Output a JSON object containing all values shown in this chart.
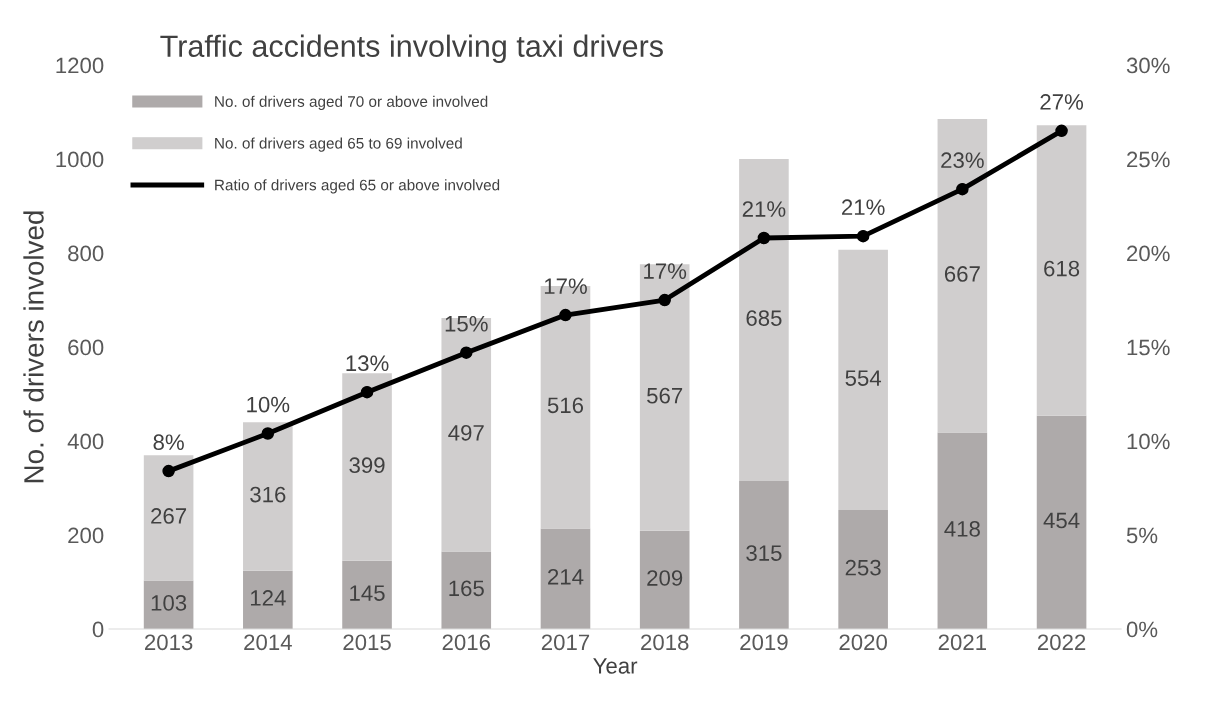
{
  "chart_data": {
    "type": "bar",
    "title": "Traffic accidents involving taxi drivers",
    "xlabel": "Year",
    "ylabel": "No. of drivers involved",
    "categories": [
      "2013",
      "2014",
      "2015",
      "2016",
      "2017",
      "2018",
      "2019",
      "2020",
      "2021",
      "2022"
    ],
    "stacked": true,
    "series": [
      {
        "name": "No. of drivers aged 70 or above involved",
        "color": "#aeaaaa",
        "values": [
          103,
          124,
          145,
          165,
          214,
          209,
          315,
          253,
          418,
          454
        ],
        "value_labels": [
          "103",
          "124",
          "145",
          "165",
          "214",
          "209",
          "315",
          "253",
          "418",
          "454"
        ]
      },
      {
        "name": "No. of drivers aged 65 to 69 involved",
        "color": "#d0cece",
        "values": [
          267,
          316,
          399,
          497,
          516,
          567,
          685,
          554,
          667,
          618
        ],
        "value_labels": [
          "267",
          "316",
          "399",
          "497",
          "516",
          "567",
          "685",
          "554",
          "667",
          "618"
        ]
      },
      {
        "name": "Ratio of drivers aged 65 or above involved",
        "type": "line",
        "axis": "y2",
        "color": "#000000",
        "marker": "circle",
        "values": [
          8.4,
          10.4,
          12.6,
          14.7,
          16.7,
          17.5,
          20.8,
          20.9,
          23.4,
          26.5
        ],
        "value_labels": [
          "8%",
          "10%",
          "13%",
          "15%",
          "17%",
          "17%",
          "21%",
          "21%",
          "23%",
          "27%"
        ]
      }
    ],
    "ylim": [
      0,
      1200
    ],
    "yticks": [
      0,
      200,
      400,
      600,
      800,
      1000,
      1200
    ],
    "y2lim": [
      0,
      30
    ],
    "y2ticks": [
      {
        "value": 0,
        "label": "0%"
      },
      {
        "value": 5,
        "label": "5%"
      },
      {
        "value": 10,
        "label": "10%"
      },
      {
        "value": 15,
        "label": "15%"
      },
      {
        "value": 20,
        "label": "20%"
      },
      {
        "value": 25,
        "label": "25%"
      },
      {
        "value": 30,
        "label": "30%"
      }
    ],
    "grid": false,
    "legend": "top left"
  }
}
